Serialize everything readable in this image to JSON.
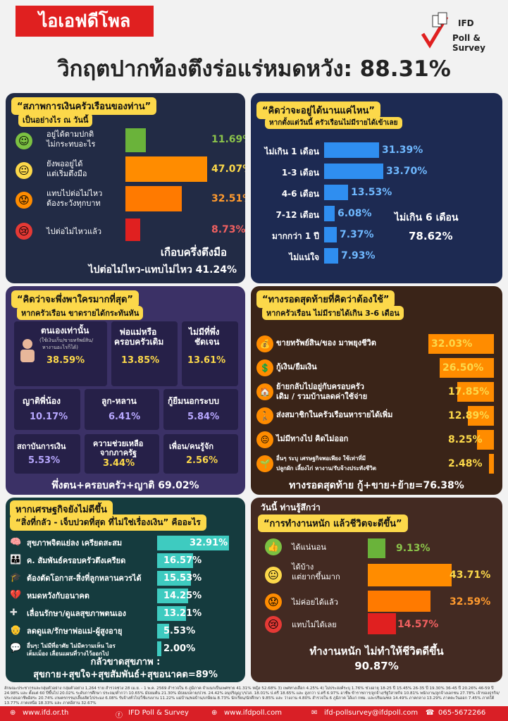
{
  "header": {
    "brand": "ไอเอฟดีโพล",
    "logo_line1": "IFD",
    "logo_line2": "Poll & Survey",
    "headline": "วิกฤตปากท้องตึงร่อแร่หมดหวัง: 88.31%"
  },
  "colors": {
    "green": "#6ab33a",
    "orange": "#ff8c00",
    "red": "#e02020",
    "yellow": "#fcd84a",
    "blue": "#2f8ef0",
    "teal": "#3ecbc0"
  },
  "p1": {
    "title": "“สภาพการเงินครัวเรือนของท่าน”",
    "subtitle": "เป็นอย่างไร ณ วันนี้",
    "items": [
      {
        "label1": "อยู่ได้ตามปกติ",
        "label2": "ไม่กระทบอะไร",
        "value": "11.69%",
        "pct": 11.69
      },
      {
        "label1": "ยังพออยู่ได้",
        "label2": "แต่เริ่มตึงมือ",
        "value": "47.07%",
        "pct": 47.07
      },
      {
        "label1": "แทบไปต่อไม่ไหว",
        "label2": "ต้องระวังทุกบาท",
        "value": "32.51%",
        "pct": 32.51
      },
      {
        "label1": "ไปต่อไม่ไหวแล้ว",
        "label2": "",
        "value": "8.73%",
        "pct": 8.73
      }
    ],
    "summary1": "เกือบครึ่งตึงมือ",
    "summary2": "ไปต่อไม่ไหว-แทบไม่ไหว  41.24%"
  },
  "p2": {
    "title": "“คิดว่าจะอยู่ได้นานแค่ไหน”",
    "subtitle": "หากตั้งแต่วันนี้ ครัวเรือนไม่มีรายได้เข้าเลย",
    "items": [
      {
        "label": "ไม่เกิน 1 เดือน",
        "value": "31.39%",
        "pct": 31.39
      },
      {
        "label": "1-3 เดือน",
        "value": "33.70%",
        "pct": 33.7
      },
      {
        "label": "4-6 เดือน",
        "value": "13.53%",
        "pct": 13.53
      },
      {
        "label": "7-12 เดือน",
        "value": "6.08%",
        "pct": 6.08
      },
      {
        "label": "มากกว่า 1 ปี",
        "value": "7.37%",
        "pct": 7.37
      },
      {
        "label": "ไม่แน่ใจ",
        "value": "7.93%",
        "pct": 7.93
      }
    ],
    "summary_label": "ไม่เกิน 6 เดือน",
    "summary_value": "78.62%"
  },
  "p3": {
    "title": "“คิดว่าจะพึ่งพาใครมากที่สุด”",
    "subtitle": "หากครัวเรือน ขาดรายได้กระทันหัน",
    "c1": {
      "label": "ตนเองเท่านั้น",
      "note1": "(ใช้เงินเก็บ/ขายทรัพย์สิน/",
      "note2": "หางานอะไรก็ได้)",
      "value": "38.59%"
    },
    "c2": {
      "label1": "พ่อแม่หรือ",
      "label2": "ครอบครัวเดิม",
      "value": "13.85%"
    },
    "c3": {
      "label1": "ไม่มีที่พึ่ง",
      "label2": "ชัดเจน",
      "value": "13.61%"
    },
    "c4": {
      "label": "ญาติพี่น้อง",
      "value": "10.17%"
    },
    "c5": {
      "label": "ลูก-หลาน",
      "value": "6.41%"
    },
    "c6": {
      "label": "กู้ยืมนอกระบบ",
      "value": "5.84%"
    },
    "c7": {
      "label": "สถาบันการเงิน",
      "value": "5.53%"
    },
    "c8": {
      "label1": "ความช่วยเหลือ",
      "label2": "จากภาครัฐ",
      "value": "3.44%"
    },
    "c9": {
      "label": "เพื่อน/คนรู้จัก",
      "value": "2.56%"
    },
    "summary": "พึ่งตน+ครอบครัว+ญาติ 69.02%"
  },
  "p4": {
    "title": "“ทางรอดสุดท้ายที่คิดว่าต้องใช้”",
    "subtitle": "หากครัวเรือน ไม่มีรายได้เกิน 3-6 เดือน",
    "items": [
      {
        "label1": "ขายทรัพย์สิน/ของ มาพยุงชีวิต",
        "label2": "",
        "value": "32.03%",
        "pct": 32.03
      },
      {
        "label1": "กู้เงิน/ยืมเงิน",
        "label2": "",
        "value": "26.50%",
        "pct": 26.5
      },
      {
        "label1": "ย้ายกลับไปอยู่กับครอบครัว",
        "label2": "เดิม / รวมบ้านลดค่าใช้จ่าย",
        "value": "17.85%",
        "pct": 17.85
      },
      {
        "label1": "ส่งสมาชิกในครัวเรือนหารายได้เพิ่ม",
        "label2": "",
        "value": "12.89%",
        "pct": 12.89
      },
      {
        "label1": "ไม่มีทางไป คิดไม่ออก",
        "label2": "",
        "value": "8.25%",
        "pct": 8.25
      },
      {
        "label1": "อื่นๆ ระบุ เศรษฐกิจพอเพียง ใช้เท่าที่มี",
        "label2": "ปลูกผัก เลี้ยงไก่ หางาน/รับจ้างประทังชีวิต",
        "value": "2.48%",
        "pct": 2.48
      }
    ],
    "summary": "ทางรอดสุดท้าย กู้+ขาย+ย้าย=76.38%"
  },
  "p5": {
    "title1": "หากเศรษฐกิจยังไม่ดีขึ้น",
    "title2": "“สิ่งที่กลัว - เจ็บปวดที่สุด ที่ไม่ใช่เรื่องเงิน” คืออะไร",
    "items": [
      {
        "label1": "สุขภาพจิตแย่ลง เครียดสะสม",
        "label2": "",
        "value": "32.91%",
        "pct": 32.91
      },
      {
        "label1": "ค. สัมพันธ์ครอบครัวตึงเครียด",
        "label2": "",
        "value": "16.57%",
        "pct": 16.57
      },
      {
        "label1": "ต้องตัดโอกาส-สิ่งที่ลูกหลานควรได้",
        "label2": "",
        "value": "15.53%",
        "pct": 15.53
      },
      {
        "label1": "หมดหวังกับอนาคต",
        "label2": "",
        "value": "14.25%",
        "pct": 14.25
      },
      {
        "label1": "เลื่อนรักษา/ดูแลสุขภาพตนเอง",
        "label2": "",
        "value": "13.21%",
        "pct": 13.21
      },
      {
        "label1": "ลดดูแล/รักษาพ่อแม่-ผู้สูงอายุ",
        "label2": "",
        "value": "5.53%",
        "pct": 5.53
      },
      {
        "label1": "อื่นๆ: ไม่มีที่อาศัย ไม่มีความเห็น ไอร",
        "label2": "เต็มเม็อง เลื่อนแผนที่วางไว้ออกไป",
        "value": "2.00%",
        "pct": 2.0
      }
    ],
    "summary1": "กลัวขาดสุขภาพ :",
    "summary2": "สุขกาย+สุขใจ+สุขสัมพันธ์+สุขอนาคต=89%"
  },
  "p6": {
    "title1": "วันนี้ ท่านรู้สึกว่า",
    "title2": "“การทำงานหนัก แล้วชีวิตจะดีขึ้น”",
    "items": [
      {
        "label1": "ได้แน่นอน",
        "label2": "",
        "value": "9.13%",
        "pct": 9.13
      },
      {
        "label1": "ได้บ้าง",
        "label2": "แต่ยากขึ้นมาก",
        "value": "43.71%",
        "pct": 43.71
      },
      {
        "label1": "ไม่ค่อยได้แล้ว",
        "label2": "",
        "value": "32.59%",
        "pct": 32.59
      },
      {
        "label1": "แทบไม่ได้เลย",
        "label2": "",
        "value": "14.57%",
        "pct": 14.57
      }
    ],
    "summary1": "ทำงานหนัก ไม่ทำให้ชีวิตดีขึ้น",
    "summary2": "90.87%"
  },
  "footnote": "ลักษณะประชากรและกลุ่มตัวอย่าง กลุ่มตัวอย่าง 1,264 ราย สำรวจช่วง 28 เม.ย. - 1 พ.ค. 2569 สำรวจใน 6 ภูมิภาค จำแนกเป็นเพศชาย 41.31% หญิง 52.68% 3) เพศทางเลือก 4.25% 4) ไม่ประสงค์ระบุ 1.76% ช่วงอายุ 18-25 ปี 15.45% 26-35 ปี 19.30% 36-45 ปี 20.26% 46-59 ปี 24.98% และ ตั้งแต่ 60 ปีขึ้นไป 20.02% ระดับการศึกษา ประถม/ต่ำกว่า 10.65% มัธยมต้น 21.30% มัธยมปลาย/ปวช. 24.42% อนุปริญญา/ปวส. 18.01% ป.ตรี 18.65% และ สูงกว่า ป.ตรี 6.97% อาชีพ ข้าราชการ/ลูกจ้าง/รัฐวิสาหกิจ 10.81% พนักงาน/ลูกจ้างเอกชน 27.78% เจ้าของธุรกิจ/ประกอบอาชีพอิสระ 20.74% เกษตรกรรม/เลี้ยงสัตว์/ประมง 6.08% รับจ้างทั่วไป/ใช้แรงงาน 11.22% แม่บ้าน/พ่อบ้าน/เกษียณ 8.73% นักเรียน/นักศึกษา 9.85% และ ว่างงาน 4.80% สำรวจใน 6 ภูมิภาค ได้แก่ กทม. และปริมณฑล 14.49% ภาคกลาง 13.29% ภาคตะวันออก 7.45% ภาคใต้ 13.77% ภาคเหนือ 18.33% และ ภาคอีสาน 32.67%",
  "bottom": {
    "web": "www.ifd.or.th",
    "fb": "IFD Poll & Survey",
    "poll": "www.ifdpoll.com",
    "email": "ifd-pollsurvey@ifdpoll.com",
    "phone": "065-5672266"
  }
}
